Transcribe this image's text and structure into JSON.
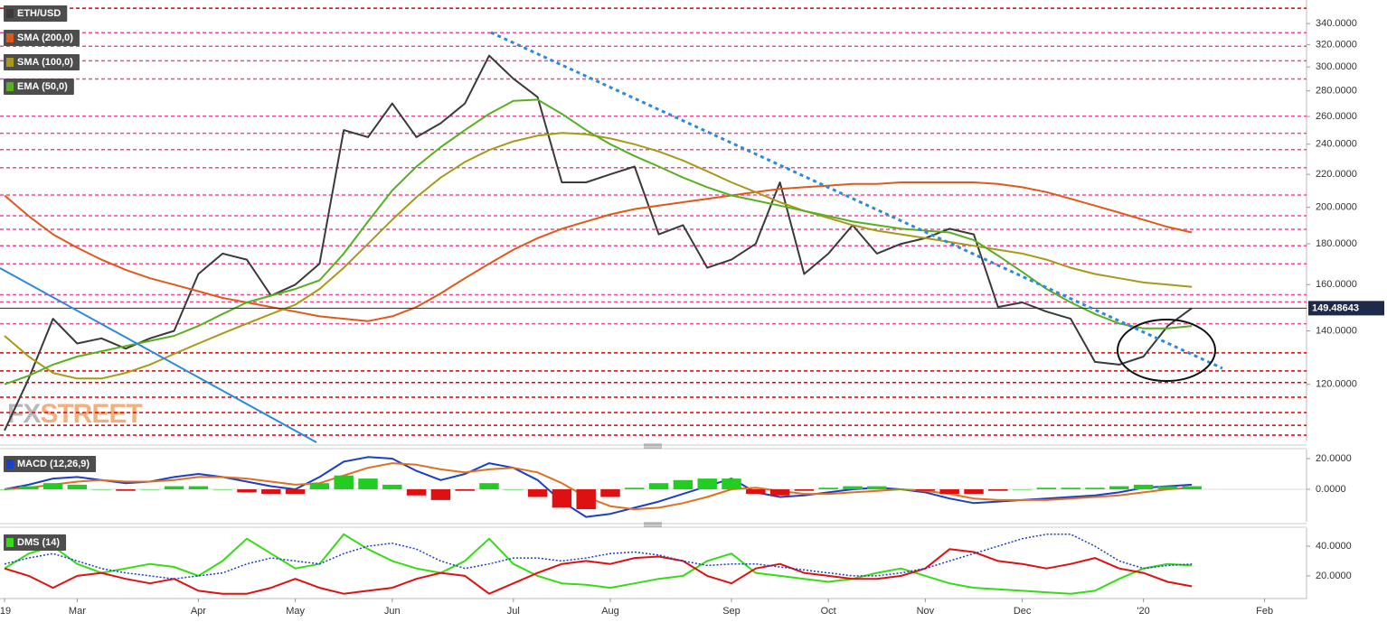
{
  "chart_data": [
    {
      "type": "line",
      "log_scale": true,
      "ylim": [
        102,
        364
      ],
      "yticks": [
        {
          "value": 120,
          "label": "120.0000"
        },
        {
          "value": 140,
          "label": "140.0000"
        },
        {
          "value": 160,
          "label": "160.0000"
        },
        {
          "value": 180,
          "label": "180.0000"
        },
        {
          "value": 200,
          "label": "200.0000"
        },
        {
          "value": 220,
          "label": "220.0000"
        },
        {
          "value": 240,
          "label": "240.0000"
        },
        {
          "value": 260,
          "label": "260.0000"
        },
        {
          "value": 280,
          "label": "280.0000"
        },
        {
          "value": 300,
          "label": "300.0000"
        },
        {
          "value": 320,
          "label": "320.0000"
        },
        {
          "value": 340,
          "label": "340.0000"
        }
      ],
      "last_value": 149.48643,
      "watermark": [
        "FX",
        "STREET"
      ],
      "hlines": [
        {
          "value": 355.5,
          "color": "#dd0000"
        },
        {
          "value": 331.2,
          "color": "#f0489c"
        },
        {
          "value": 318.5,
          "color": "#f0489c"
        },
        {
          "value": 305.4,
          "color": "#f0489c"
        },
        {
          "value": 289.8,
          "color": "#f0489c"
        },
        {
          "value": 260.3,
          "color": "#f0489c"
        },
        {
          "value": 247.7,
          "color": "#f0489c"
        },
        {
          "value": 236.3,
          "color": "#f0489c"
        },
        {
          "value": 224.3,
          "color": "#f0489c"
        },
        {
          "value": 207.3,
          "color": "#f0489c"
        },
        {
          "value": 195.2,
          "color": "#f0489c"
        },
        {
          "value": 187.7,
          "color": "#f0489c"
        },
        {
          "value": 179.0,
          "color": "#f0489c"
        },
        {
          "value": 169.9,
          "color": "#f0489c"
        },
        {
          "value": 155.4,
          "color": "#f0489c"
        },
        {
          "value": 152.2,
          "color": "#f0489c"
        },
        {
          "value": 142.9,
          "color": "#f0489c"
        },
        {
          "value": 131.4,
          "color": "#dd0000"
        },
        {
          "value": 124.7,
          "color": "#dd0000"
        },
        {
          "value": 120.6,
          "color": "#dd0000"
        },
        {
          "value": 115.6,
          "color": "#dd0000"
        },
        {
          "value": 110.6,
          "color": "#dd0000"
        },
        {
          "value": 106.6,
          "color": "#dd0000"
        },
        {
          "value": 103.6,
          "color": "#dd0000"
        }
      ],
      "series": [
        {
          "name": "ETH/USD",
          "color": "#3a3a3a",
          "values": [
            105,
            122,
            145,
            135,
            137,
            133,
            137,
            140,
            165,
            175,
            172,
            155,
            160,
            170,
            250,
            245,
            270,
            245,
            255,
            270,
            310,
            290,
            275,
            215,
            215,
            220,
            225,
            185,
            190,
            168,
            172,
            180,
            215,
            165,
            175,
            190,
            175,
            180,
            183,
            188,
            185,
            150,
            152,
            148,
            145,
            128,
            127,
            130,
            142,
            149.5,
            null,
            null,
            null,
            null
          ]
        },
        {
          "name": "SMA (200,0)",
          "color": "#e0591a",
          "values": [
            207,
            195,
            185,
            178,
            172,
            167,
            163,
            160,
            157,
            154,
            152,
            150,
            148,
            146,
            145,
            144,
            146,
            150,
            156,
            163,
            170,
            177,
            183,
            188,
            192,
            196,
            199,
            201,
            203,
            205,
            207,
            209,
            211,
            212,
            213,
            214,
            214,
            215,
            215,
            215,
            215,
            214,
            212,
            209,
            205,
            201,
            197,
            193,
            189,
            186,
            null,
            null,
            null,
            null
          ]
        },
        {
          "name": "SMA (100,0)",
          "color": "#a89a18",
          "values": [
            138,
            130,
            124,
            122,
            122,
            124,
            127,
            131,
            135,
            139,
            143,
            147,
            151,
            158,
            168,
            180,
            193,
            206,
            218,
            228,
            236,
            242,
            246,
            248,
            247,
            244,
            240,
            235,
            229,
            222,
            215,
            209,
            203,
            198,
            194,
            190,
            187,
            185,
            183,
            181,
            179,
            177,
            175,
            172,
            168,
            165,
            163,
            161,
            160,
            159,
            null,
            null,
            null,
            null
          ]
        },
        {
          "name": "EMA (50,0)",
          "color": "#58b020",
          "values": [
            120,
            123,
            127,
            130,
            132,
            134,
            136,
            138,
            142,
            147,
            152,
            155,
            158,
            162,
            175,
            192,
            210,
            225,
            238,
            250,
            262,
            272,
            273,
            262,
            250,
            240,
            232,
            225,
            218,
            212,
            207,
            204,
            201,
            198,
            195,
            192,
            190,
            188,
            187,
            186,
            182,
            174,
            166,
            158,
            152,
            147,
            143,
            141,
            141,
            142,
            null,
            null,
            null,
            null
          ]
        }
      ]
    },
    {
      "type": "line",
      "title": "MACD (12,26,9)",
      "ylim": [
        -21.2,
        25.9
      ],
      "yticks": [
        {
          "value": 0,
          "label": "0.0000"
        },
        {
          "value": 20,
          "label": "20.0000"
        }
      ],
      "series": [
        {
          "color": "#1a3fc9",
          "values": [
            0,
            3,
            7,
            8,
            6,
            4,
            5,
            8,
            10,
            8,
            5,
            2,
            0,
            8,
            18,
            21,
            20,
            12,
            6,
            10,
            17,
            14,
            6,
            -8,
            -18,
            -16,
            -12,
            -8,
            -3,
            2,
            7,
            -2,
            -5,
            -4,
            -2,
            0,
            1,
            0,
            -2,
            -6,
            -9,
            -8,
            -7,
            -6,
            -5,
            -4,
            -2,
            1,
            2,
            3,
            null,
            null,
            null,
            null
          ]
        },
        {
          "color": "#e07020",
          "values": [
            0,
            1,
            3,
            5,
            6,
            5,
            5,
            6,
            8,
            8,
            7,
            5,
            3,
            4,
            9,
            14,
            17,
            16,
            13,
            11,
            13,
            14,
            11,
            4,
            -5,
            -11,
            -13,
            -12,
            -9,
            -5,
            0,
            1,
            -1,
            -3,
            -3,
            -2,
            -1,
            0,
            -1,
            -3,
            -6,
            -7,
            -7,
            -7,
            -6,
            -5,
            -4,
            -2,
            0,
            1,
            null,
            null,
            null,
            null
          ]
        },
        {
          "style": "bars",
          "color": "#22cc22",
          "negative_color": "#dd1111",
          "values": [
            0,
            2,
            4,
            3,
            0,
            -1,
            0,
            2,
            2,
            0,
            -2,
            -3,
            -3,
            4,
            9,
            7,
            3,
            -4,
            -7,
            -1,
            4,
            0,
            -5,
            -12,
            -13,
            -5,
            1,
            4,
            6,
            7,
            7,
            -3,
            -4,
            -1,
            1,
            2,
            2,
            0,
            -1,
            -3,
            -3,
            -1,
            0,
            1,
            1,
            1,
            2,
            3,
            2,
            2,
            null,
            null,
            null,
            null
          ]
        }
      ]
    },
    {
      "type": "line",
      "title": "DMS (14)",
      "ylim": [
        4.8,
        52.1
      ],
      "yticks": [
        {
          "value": 20,
          "label": "20.0000"
        },
        {
          "value": 40,
          "label": "40.0000"
        }
      ],
      "categories": [
        "'19",
        null,
        null,
        "Mar",
        null,
        null,
        null,
        null,
        "Apr",
        null,
        null,
        null,
        "May",
        null,
        null,
        null,
        "Jun",
        null,
        null,
        null,
        null,
        "Jul",
        null,
        null,
        null,
        "Aug",
        null,
        null,
        null,
        null,
        "Sep",
        null,
        null,
        null,
        "Oct",
        null,
        null,
        null,
        "Nov",
        null,
        null,
        null,
        "Dec",
        null,
        null,
        null,
        null,
        "'20",
        null,
        null,
        null,
        null,
        "Feb",
        null
      ],
      "series": [
        {
          "color": "#33dd11",
          "values": [
            25,
            35,
            40,
            28,
            22,
            25,
            28,
            26,
            20,
            30,
            45,
            35,
            25,
            28,
            48,
            38,
            30,
            25,
            22,
            30,
            45,
            28,
            20,
            15,
            14,
            12,
            15,
            18,
            20,
            30,
            35,
            22,
            20,
            18,
            16,
            18,
            22,
            25,
            20,
            15,
            12,
            11,
            10,
            9,
            8,
            10,
            18,
            25,
            28,
            27,
            null,
            null,
            null,
            null
          ]
        },
        {
          "color": "#e01010",
          "values": [
            25,
            20,
            12,
            20,
            22,
            18,
            15,
            18,
            10,
            8,
            8,
            12,
            18,
            12,
            8,
            10,
            12,
            18,
            22,
            20,
            8,
            15,
            22,
            28,
            30,
            28,
            32,
            33,
            30,
            20,
            15,
            25,
            28,
            22,
            20,
            18,
            18,
            20,
            25,
            38,
            36,
            30,
            28,
            25,
            28,
            32,
            25,
            22,
            16,
            13,
            null,
            null,
            null,
            null
          ]
        },
        {
          "style": "dotted",
          "color": "#1a3fc9",
          "values": [
            28,
            32,
            35,
            30,
            25,
            22,
            20,
            18,
            20,
            22,
            28,
            32,
            30,
            28,
            35,
            40,
            42,
            38,
            30,
            25,
            28,
            32,
            32,
            30,
            32,
            35,
            36,
            34,
            30,
            27,
            28,
            28,
            26,
            24,
            22,
            20,
            20,
            22,
            25,
            30,
            35,
            40,
            45,
            48,
            48,
            40,
            30,
            25,
            27,
            28,
            null,
            null,
            null,
            null
          ]
        }
      ]
    }
  ]
}
